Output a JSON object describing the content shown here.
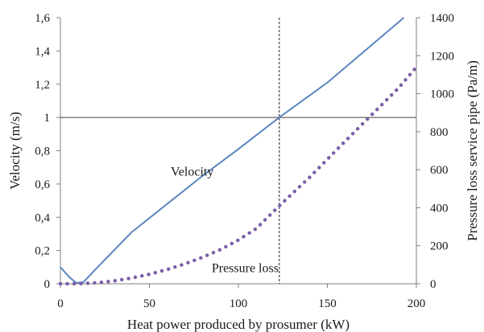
{
  "chart_data": {
    "type": "line",
    "title": "",
    "xlabel": "Heat power produced by prosumer (kW)",
    "ylabel_left": "Velocity (m/s)",
    "ylabel_right": "Pressure loss service pipe (Pa/m)",
    "xlim": [
      0,
      200
    ],
    "ylim_left": [
      0,
      1.6
    ],
    "ylim_right": [
      0,
      1400
    ],
    "x_ticks": [
      "0",
      "50",
      "100",
      "150",
      "200"
    ],
    "y_left_ticks": [
      "0",
      "0,2",
      "0,4",
      "0,6",
      "0,8",
      "1",
      "1,2",
      "1,4",
      "1,6"
    ],
    "y_right_ticks": [
      "0",
      "200",
      "400",
      "600",
      "800",
      "1000",
      "1200",
      "1400"
    ],
    "grid": false,
    "reference_lines": {
      "horizontal_left_axis": 1.0,
      "vertical_x": 123
    },
    "annotations": [
      {
        "text": "Velocity",
        "x": 62,
        "y_left": 0.65
      },
      {
        "text": "Pressure loss",
        "x": 85,
        "y_left": 0.07
      }
    ],
    "series": [
      {
        "axis": "left",
        "style": "solid",
        "color": "#5a86bf",
        "x": [
          0,
          5,
          9,
          13,
          20,
          40,
          60,
          80,
          100,
          123,
          150,
          193
        ],
        "y": [
          0.1,
          0.04,
          0.005,
          0.01,
          0.09,
          0.31,
          0.48,
          0.65,
          0.81,
          1.0,
          1.21,
          1.6
        ]
      },
      {
        "axis": "right",
        "style": "dotted",
        "color": "#7b5ea7",
        "x": [
          0,
          10,
          20,
          30,
          40,
          50,
          60,
          70,
          80,
          90,
          100,
          110,
          123,
          140,
          160,
          175,
          190,
          200
        ],
        "y": [
          0,
          0,
          5,
          15,
          30,
          50,
          75,
          105,
          140,
          180,
          230,
          290,
          410,
          560,
          750,
          890,
          1030,
          1140
        ]
      }
    ]
  }
}
